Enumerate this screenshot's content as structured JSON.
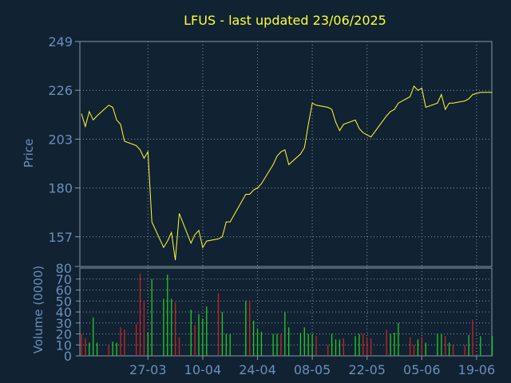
{
  "title": "LFUS - last updated 23/06/2025",
  "colors": {
    "background": "#112233",
    "text": "#6a8fb8",
    "title": "#ffff33",
    "grid": "#8899aa",
    "price_line": "#ffff33",
    "volume_up": "#22cc22",
    "volume_down": "#cc2222"
  },
  "chart_data": [
    {
      "type": "line",
      "ylabel": "Price",
      "ylim": [
        143,
        249
      ],
      "yticks": [
        249,
        226,
        203,
        180,
        157
      ],
      "grid": true,
      "x": [
        "2025-03-10",
        "2025-03-11",
        "2025-03-12",
        "2025-03-13",
        "2025-03-14",
        "2025-03-17",
        "2025-03-18",
        "2025-03-19",
        "2025-03-20",
        "2025-03-21",
        "2025-03-24",
        "2025-03-25",
        "2025-03-26",
        "2025-03-27",
        "2025-03-28",
        "2025-03-31",
        "2025-04-01",
        "2025-04-02",
        "2025-04-03",
        "2025-04-04",
        "2025-04-07",
        "2025-04-08",
        "2025-04-09",
        "2025-04-10",
        "2025-04-11",
        "2025-04-14",
        "2025-04-15",
        "2025-04-16",
        "2025-04-17",
        "2025-04-21",
        "2025-04-22",
        "2025-04-23",
        "2025-04-24",
        "2025-04-25",
        "2025-04-28",
        "2025-04-29",
        "2025-04-30",
        "2025-05-01",
        "2025-05-02",
        "2025-05-05",
        "2025-05-06",
        "2025-05-07",
        "2025-05-08",
        "2025-05-09",
        "2025-05-12",
        "2025-05-13",
        "2025-05-14",
        "2025-05-15",
        "2025-05-16",
        "2025-05-19",
        "2025-05-20",
        "2025-05-21",
        "2025-05-22",
        "2025-05-23",
        "2025-05-27",
        "2025-05-28",
        "2025-05-29",
        "2025-05-30",
        "2025-06-02",
        "2025-06-03",
        "2025-06-04",
        "2025-06-05",
        "2025-06-06",
        "2025-06-09",
        "2025-06-10",
        "2025-06-11",
        "2025-06-12",
        "2025-06-13",
        "2025-06-16",
        "2025-06-17",
        "2025-06-18",
        "2025-06-20",
        "2025-06-23"
      ],
      "values": [
        215,
        209,
        216,
        212,
        214,
        219,
        218,
        212,
        210,
        202,
        200,
        198,
        194,
        197,
        164,
        152,
        155,
        159,
        146,
        168,
        154,
        158,
        160,
        152,
        155,
        156,
        157,
        164,
        164,
        177,
        177,
        179,
        180,
        182,
        191,
        195,
        197,
        198,
        191,
        196,
        199,
        210,
        220,
        219,
        218,
        217,
        211,
        207,
        210,
        212,
        208,
        206,
        205,
        204,
        214,
        216,
        217,
        220,
        223,
        228,
        226,
        227,
        218,
        220,
        224,
        217,
        220,
        220,
        221,
        222,
        224,
        225,
        225
      ]
    },
    {
      "type": "bar",
      "ylabel": "Volume (0000)",
      "ylim": [
        0,
        80
      ],
      "yticks": [
        0,
        10,
        20,
        30,
        40,
        50,
        60,
        70
      ],
      "grid": true,
      "xticklabels": [
        "27-03",
        "10-04",
        "24-04",
        "08-05",
        "22-05",
        "05-06",
        "19-06"
      ],
      "x": [
        "2025-03-10",
        "2025-03-11",
        "2025-03-12",
        "2025-03-13",
        "2025-03-14",
        "2025-03-17",
        "2025-03-18",
        "2025-03-19",
        "2025-03-20",
        "2025-03-21",
        "2025-03-24",
        "2025-03-25",
        "2025-03-26",
        "2025-03-27",
        "2025-03-28",
        "2025-03-31",
        "2025-04-01",
        "2025-04-02",
        "2025-04-03",
        "2025-04-04",
        "2025-04-07",
        "2025-04-08",
        "2025-04-09",
        "2025-04-10",
        "2025-04-11",
        "2025-04-14",
        "2025-04-15",
        "2025-04-16",
        "2025-04-17",
        "2025-04-21",
        "2025-04-22",
        "2025-04-23",
        "2025-04-24",
        "2025-04-25",
        "2025-04-28",
        "2025-04-29",
        "2025-04-30",
        "2025-05-01",
        "2025-05-02",
        "2025-05-05",
        "2025-05-06",
        "2025-05-07",
        "2025-05-08",
        "2025-05-09",
        "2025-05-12",
        "2025-05-13",
        "2025-05-14",
        "2025-05-15",
        "2025-05-16",
        "2025-05-19",
        "2025-05-20",
        "2025-05-21",
        "2025-05-22",
        "2025-05-23",
        "2025-05-27",
        "2025-05-28",
        "2025-05-29",
        "2025-05-30",
        "2025-06-02",
        "2025-06-03",
        "2025-06-04",
        "2025-06-05",
        "2025-06-06",
        "2025-06-09",
        "2025-06-10",
        "2025-06-11",
        "2025-06-12",
        "2025-06-13",
        "2025-06-16",
        "2025-06-17",
        "2025-06-18",
        "2025-06-20",
        "2025-06-23"
      ],
      "values": [
        20,
        16,
        12,
        35,
        12,
        10,
        13,
        12,
        26,
        24,
        29,
        75,
        50,
        21,
        70,
        52,
        74,
        52,
        49,
        17,
        42,
        28,
        38,
        34,
        45,
        57,
        40,
        20,
        20,
        50,
        50,
        32,
        25,
        22,
        20,
        20,
        20,
        40,
        26,
        21,
        26,
        20,
        20,
        18,
        10,
        20,
        15,
        15,
        16,
        18,
        20,
        20,
        17,
        16,
        24,
        20,
        21,
        30,
        17,
        10,
        15,
        17,
        12,
        20,
        20,
        18,
        12,
        10,
        10,
        19,
        33,
        18,
        18
      ],
      "directions": [
        "down",
        "down",
        "up",
        "up",
        "up",
        "down",
        "up",
        "up",
        "down",
        "down",
        "down",
        "down",
        "down",
        "up",
        "up",
        "up",
        "up",
        "up",
        "down",
        "down",
        "up",
        "down",
        "up",
        "up",
        "up",
        "down",
        "up",
        "up",
        "up",
        "up",
        "down",
        "up",
        "up",
        "up",
        "up",
        "up",
        "down",
        "up",
        "up",
        "up",
        "up",
        "up",
        "up",
        "down",
        "down",
        "up",
        "up",
        "up",
        "down",
        "up",
        "up",
        "down",
        "down",
        "down",
        "down",
        "up",
        "up",
        "up",
        "down",
        "down",
        "up",
        "down",
        "up",
        "up",
        "up",
        "down",
        "up",
        "down",
        "down",
        "up",
        "down",
        "up",
        "up"
      ]
    }
  ]
}
